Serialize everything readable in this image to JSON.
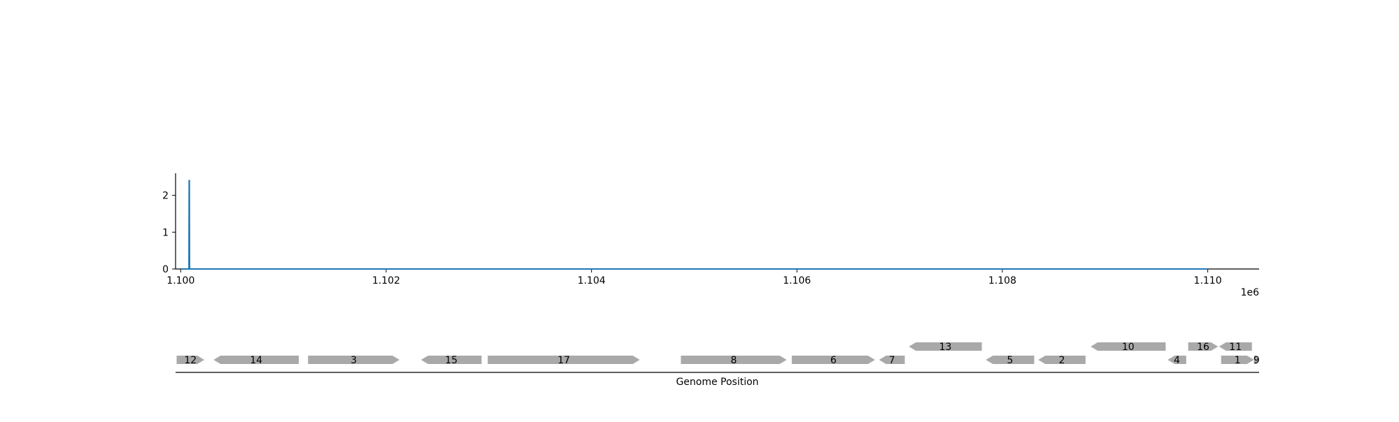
{
  "chart_data": [
    {
      "type": "line",
      "title": "",
      "xlabel": "",
      "ylabel": "",
      "x_offset_label": "1e6",
      "xlim": [
        1099950,
        1110500
      ],
      "ylim": [
        0,
        2.6
      ],
      "xticks": [
        1100000,
        1102000,
        1104000,
        1106000,
        1108000,
        1110000
      ],
      "xtick_labels": [
        "1.100",
        "1.102",
        "1.104",
        "1.106",
        "1.108",
        "1.110"
      ],
      "yticks": [
        0,
        1,
        2
      ],
      "ytick_labels": [
        "0",
        "1",
        "2"
      ],
      "grid": false,
      "series": [
        {
          "color": "#1f77b4",
          "x": [
            1100000,
            1100080,
            1100082,
            1100084,
            1100086,
            1110000
          ],
          "y": [
            0,
            0,
            2.4,
            2.4,
            0,
            0
          ]
        }
      ]
    },
    {
      "type": "gene-track",
      "xlabel": "Genome Position",
      "xlim": [
        1099950,
        1110500
      ],
      "feature_color": "#a9a9a9",
      "features": [
        {
          "label": "12",
          "start": 1099960,
          "end": 1100230,
          "strand": "+",
          "row": 0
        },
        {
          "label": "14",
          "start": 1100320,
          "end": 1101150,
          "strand": "-",
          "row": 0
        },
        {
          "label": "3",
          "start": 1101240,
          "end": 1102130,
          "strand": "+",
          "row": 0
        },
        {
          "label": "15",
          "start": 1102340,
          "end": 1102930,
          "strand": "-",
          "row": 0
        },
        {
          "label": "17",
          "start": 1102990,
          "end": 1104470,
          "strand": "+",
          "row": 0
        },
        {
          "label": "8",
          "start": 1104870,
          "end": 1105900,
          "strand": "+",
          "row": 0
        },
        {
          "label": "6",
          "start": 1105950,
          "end": 1106760,
          "strand": "+",
          "row": 0
        },
        {
          "label": "7",
          "start": 1106800,
          "end": 1107050,
          "strand": "-",
          "row": 0
        },
        {
          "label": "13",
          "start": 1107090,
          "end": 1107800,
          "strand": "-",
          "row": 1
        },
        {
          "label": "5",
          "start": 1107840,
          "end": 1108310,
          "strand": "-",
          "row": 0
        },
        {
          "label": "2",
          "start": 1108350,
          "end": 1108810,
          "strand": "-",
          "row": 0
        },
        {
          "label": "10",
          "start": 1108860,
          "end": 1109590,
          "strand": "-",
          "row": 1
        },
        {
          "label": "4",
          "start": 1109610,
          "end": 1109790,
          "strand": "-",
          "row": 0
        },
        {
          "label": "16",
          "start": 1109810,
          "end": 1110100,
          "strand": "+",
          "row": 1
        },
        {
          "label": "1",
          "start": 1110130,
          "end": 1110450,
          "strand": "+",
          "row": 0
        },
        {
          "label": "11",
          "start": 1110110,
          "end": 1110430,
          "strand": "-",
          "row": 1
        },
        {
          "label": "9",
          "start": 1110450,
          "end": 1110500,
          "strand": "+",
          "row": 0
        }
      ]
    }
  ]
}
